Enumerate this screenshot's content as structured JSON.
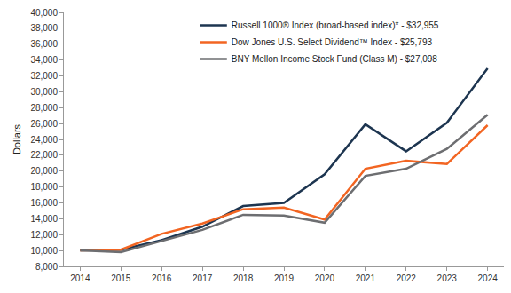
{
  "chart_data": {
    "type": "line",
    "y_label": "Dollars",
    "categories": [
      "2014",
      "2015",
      "2016",
      "2017",
      "2018",
      "2019",
      "2020",
      "2021",
      "2022",
      "2023",
      "2024"
    ],
    "series": [
      {
        "name": "Russell 1000® Index (broad-based index)* - $32,955",
        "color": "#1d3550",
        "values": [
          10000,
          10100,
          11300,
          13000,
          15600,
          16000,
          19600,
          25900,
          22500,
          26100,
          32955
        ]
      },
      {
        "name": "Dow Jones U.S. Select Dividend™ Index - $25,793",
        "color": "#f26522",
        "values": [
          10000,
          10100,
          12100,
          13400,
          15200,
          15400,
          13900,
          20300,
          21300,
          20900,
          25793
        ]
      },
      {
        "name": "BNY Mellon Income Stock Fund (Class M) - $27,098",
        "color": "#6d6e71",
        "values": [
          10000,
          9800,
          11200,
          12600,
          14500,
          14400,
          13500,
          19400,
          20300,
          22800,
          27098
        ]
      }
    ],
    "ylim": [
      8000,
      40000
    ],
    "yticks": [
      {
        "value": 8000,
        "label": "8,000"
      },
      {
        "value": 10000,
        "label": "10,000"
      },
      {
        "value": 12000,
        "label": "12,000"
      },
      {
        "value": 14000,
        "label": "14,000"
      },
      {
        "value": 16000,
        "label": "16,000"
      },
      {
        "value": 18000,
        "label": "18,000"
      },
      {
        "value": 20000,
        "label": "20,000"
      },
      {
        "value": 22000,
        "label": "22,000"
      },
      {
        "value": 24000,
        "label": "24,000"
      },
      {
        "value": 26000,
        "label": "26,000"
      },
      {
        "value": 28000,
        "label": "28,000"
      },
      {
        "value": 30000,
        "label": "30,000"
      },
      {
        "value": 32000,
        "label": "32,000"
      },
      {
        "value": 34000,
        "label": "34,000"
      },
      {
        "value": 36000,
        "label": "36,000"
      },
      {
        "value": 38000,
        "label": "38,000"
      },
      {
        "value": 40000,
        "label": "40,000"
      }
    ],
    "grid": false,
    "legend": "top"
  }
}
